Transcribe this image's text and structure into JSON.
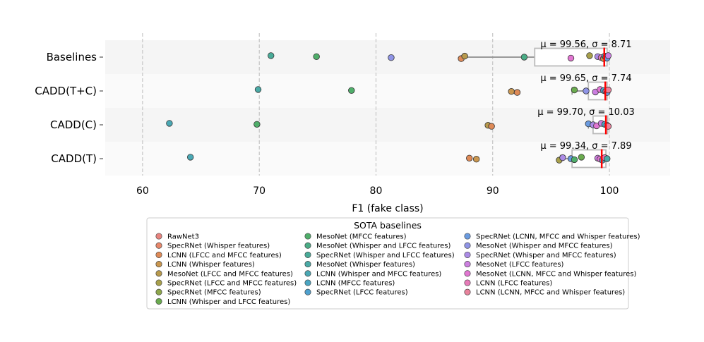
{
  "chart_data": {
    "type": "scatter",
    "xlabel": "F1 (fake class)",
    "ylabel": "",
    "xlim": [
      56.8,
      105.2
    ],
    "xticks": [
      60,
      70,
      80,
      90,
      100
    ],
    "grid": "x-dashed",
    "categories": [
      "Baselines",
      "CADD(T+C)",
      "CADD(C)",
      "CADD(T)"
    ],
    "stats": [
      {
        "category": "Baselines",
        "text": "μ = 99.56, σ = 8.71",
        "median": 99.56,
        "q1": 93.6,
        "q3": 99.8,
        "whisker_low": 87.5,
        "whisker_high": 99.9
      },
      {
        "category": "CADD(T+C)",
        "text": "μ = 99.65, σ = 7.74",
        "median": 99.65,
        "q1": 98.2,
        "q3": 99.8,
        "whisker_low": 96.8,
        "whisker_high": 99.9
      },
      {
        "category": "CADD(C)",
        "text": "μ = 99.70, σ = 10.03",
        "median": 99.7,
        "q1": 98.6,
        "q3": 99.85,
        "whisker_low": 98.2,
        "whisker_high": 99.9
      },
      {
        "category": "CADD(T)",
        "text": "μ = 99.34, σ = 7.89",
        "median": 99.34,
        "q1": 96.8,
        "q3": 99.7,
        "whisker_low": 95.8,
        "whisker_high": 99.9
      }
    ],
    "legend": {
      "title": "SOTA baselines",
      "placement": "bottom-center",
      "entries": [
        {
          "label": "RawNet3",
          "color": "#e8837e"
        },
        {
          "label": "SpecRNet (Whisper features)",
          "color": "#e8876a"
        },
        {
          "label": "LCNN (LFCC and MFCC features)",
          "color": "#de8a57"
        },
        {
          "label": "LCNN (Whisper features)",
          "color": "#c9964f"
        },
        {
          "label": "MesoNet (LFCC and MFCC features)",
          "color": "#b89a4c"
        },
        {
          "label": "SpecRNet (LFCC and MFCC features)",
          "color": "#a8a04b"
        },
        {
          "label": "SpecRNet (MFCC features)",
          "color": "#8ea74b"
        },
        {
          "label": "LCNN (Whisper and LFCC features)",
          "color": "#6aab4f"
        },
        {
          "label": "MesoNet (MFCC features)",
          "color": "#4fae6a"
        },
        {
          "label": "MesoNet (Whisper and LFCC features)",
          "color": "#4aad86"
        },
        {
          "label": "SpecRNet (Whisper and LFCC features)",
          "color": "#49ab98"
        },
        {
          "label": "MesoNet (Whisper features)",
          "color": "#4aaaa6"
        },
        {
          "label": "LCNN (Whisper and MFCC features)",
          "color": "#4aa8b4"
        },
        {
          "label": "LCNN (MFCC features)",
          "color": "#4aa5c2"
        },
        {
          "label": "SpecRNet (LFCC features)",
          "color": "#4ea1cf"
        },
        {
          "label": "SpecRNet (LCNN, MFCC and Whisper features)",
          "color": "#6a9be0"
        },
        {
          "label": "MesoNet (Whisper and MFCC features)",
          "color": "#8f94e6"
        },
        {
          "label": "SpecRNet (Whisper and MFCC features)",
          "color": "#ab8be6"
        },
        {
          "label": "MesoNet (LFCC features)",
          "color": "#cc7fe0"
        },
        {
          "label": "MesoNet (LCNN, MFCC and Whisper features)",
          "color": "#e276d2"
        },
        {
          "label": "LCNN (LFCC features)",
          "color": "#e67ab8"
        },
        {
          "label": "LCNN (LCNN, MFCC and Whisper features)",
          "color": "#e8829c"
        }
      ]
    },
    "points": {
      "Baselines": [
        {
          "x": 71.0,
          "c": "#49ab98"
        },
        {
          "x": 74.9,
          "c": "#4fae6a"
        },
        {
          "x": 81.3,
          "c": "#8f94e6"
        },
        {
          "x": 87.3,
          "c": "#de8a57"
        },
        {
          "x": 87.6,
          "c": "#b89a4c"
        },
        {
          "x": 92.7,
          "c": "#4aad86"
        },
        {
          "x": 96.7,
          "c": "#e276d2"
        },
        {
          "x": 98.3,
          "c": "#a8a04b"
        },
        {
          "x": 99.0,
          "c": "#ab8be6"
        },
        {
          "x": 99.3,
          "c": "#e67ab8"
        },
        {
          "x": 99.5,
          "c": "#c9964f"
        },
        {
          "x": 99.6,
          "c": "#4aa5c2"
        },
        {
          "x": 99.7,
          "c": "#e8829c"
        },
        {
          "x": 99.8,
          "c": "#6a9be0"
        },
        {
          "x": 99.9,
          "c": "#cc7fe0"
        }
      ],
      "CADD(T+C)": [
        {
          "x": 69.9,
          "c": "#4aaaa6"
        },
        {
          "x": 77.9,
          "c": "#4fae6a"
        },
        {
          "x": 91.6,
          "c": "#c9964f"
        },
        {
          "x": 92.1,
          "c": "#de8a57"
        },
        {
          "x": 97.0,
          "c": "#6aab4f"
        },
        {
          "x": 98.0,
          "c": "#8f94e6"
        },
        {
          "x": 98.8,
          "c": "#cc7fe0"
        },
        {
          "x": 99.2,
          "c": "#e276d2"
        },
        {
          "x": 99.5,
          "c": "#4aa5c2"
        },
        {
          "x": 99.7,
          "c": "#e67ab8"
        },
        {
          "x": 99.8,
          "c": "#6a9be0"
        },
        {
          "x": 99.9,
          "c": "#e8829c"
        }
      ],
      "CADD(C)": [
        {
          "x": 62.3,
          "c": "#4aa8b4"
        },
        {
          "x": 69.8,
          "c": "#4fae6a"
        },
        {
          "x": 89.6,
          "c": "#b89a4c"
        },
        {
          "x": 89.9,
          "c": "#de8a57"
        },
        {
          "x": 98.2,
          "c": "#6a9be0"
        },
        {
          "x": 98.6,
          "c": "#ab8be6"
        },
        {
          "x": 98.9,
          "c": "#e276d2"
        },
        {
          "x": 99.3,
          "c": "#cc7fe0"
        },
        {
          "x": 99.6,
          "c": "#4aa5c2"
        },
        {
          "x": 99.8,
          "c": "#e67ab8"
        },
        {
          "x": 99.9,
          "c": "#e8829c"
        }
      ],
      "CADD(T)": [
        {
          "x": 64.1,
          "c": "#4aa8b4"
        },
        {
          "x": 88.0,
          "c": "#de8a57"
        },
        {
          "x": 88.6,
          "c": "#c9964f"
        },
        {
          "x": 95.7,
          "c": "#a8a04b"
        },
        {
          "x": 96.0,
          "c": "#ab8be6"
        },
        {
          "x": 96.7,
          "c": "#6a9be0"
        },
        {
          "x": 97.0,
          "c": "#4fae6a"
        },
        {
          "x": 97.6,
          "c": "#6aab4f"
        },
        {
          "x": 99.0,
          "c": "#cc7fe0"
        },
        {
          "x": 99.2,
          "c": "#e276d2"
        },
        {
          "x": 99.4,
          "c": "#4aa5c2"
        },
        {
          "x": 99.6,
          "c": "#e67ab8"
        },
        {
          "x": 99.8,
          "c": "#4aaaa6"
        }
      ]
    }
  }
}
